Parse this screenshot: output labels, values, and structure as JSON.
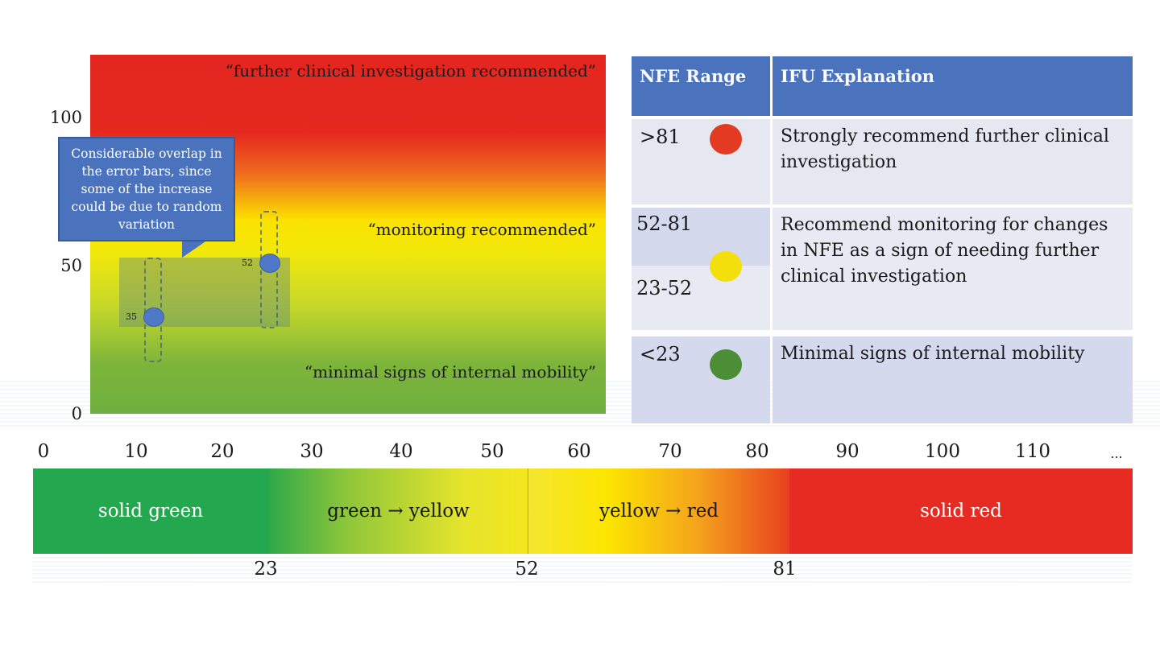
{
  "chart_data": {
    "type": "scatter",
    "y_ticks": [
      "100",
      "50",
      "0"
    ],
    "ylim": [
      0,
      120
    ],
    "zones": [
      {
        "label": "“further clinical investigation recommended”",
        "color": "#e3261f"
      },
      {
        "label": "“monitoring recommended”",
        "color": "#fbe200"
      },
      {
        "label": "“minimal signs of internal mobility”",
        "color": "#6fae3f"
      }
    ],
    "points": [
      {
        "label": "35",
        "y": 35,
        "error_range": [
          18,
          52
        ]
      },
      {
        "label": "52",
        "y": 52,
        "error_range": [
          29,
          68
        ]
      }
    ],
    "callout": "Considerable overlap in the error bars, since some of the increase could be due to random variation",
    "point_color": "#4f78c6"
  },
  "table": {
    "headers": [
      "NFE Range",
      "IFU Explanation"
    ],
    "rows": [
      {
        "range": ">81",
        "dot_color": "#e33b22",
        "explanation": "Strongly recommend further clinical investigation"
      },
      {
        "range": "52-81",
        "range2": "23-52",
        "dot_color": "#f3df0b",
        "explanation": "Recommend monitoring for changes in NFE as a sign of needing further clinical investigation"
      },
      {
        "range": "<23",
        "dot_color": "#4b8e35",
        "explanation": "Minimal signs of internal mobility"
      }
    ],
    "header_color": "#4a72bd"
  },
  "scale": {
    "ticks": [
      "0",
      "10",
      "20",
      "30",
      "40",
      "50",
      "60",
      "70",
      "80",
      "90",
      "100",
      "110",
      "..."
    ],
    "segments": [
      {
        "label": "solid green",
        "from": 0,
        "to": 23
      },
      {
        "label": "green → yellow",
        "from": 23,
        "to": 52
      },
      {
        "label": "yellow → red",
        "from": 52,
        "to": 81
      },
      {
        "label": "solid red",
        "from": 81,
        "to": 120
      }
    ],
    "thresholds": [
      "23",
      "52",
      "81"
    ],
    "colors": {
      "green": "#24a84f",
      "yellow": "#f7e21a",
      "red": "#e52b22"
    }
  }
}
